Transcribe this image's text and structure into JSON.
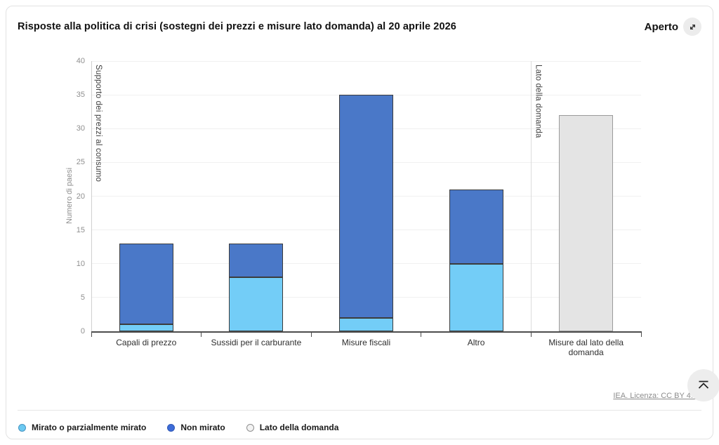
{
  "header": {
    "title": "Risposte alla politica di crisi (sostegni dei prezzi e misure lato domanda) al 20 aprile 2026",
    "open_label": "Aperto"
  },
  "chart_data": {
    "type": "bar",
    "stacked": true,
    "title": "Risposte alla politica di crisi (sostegni dei prezzi e misure lato domanda) al 20 aprile 2026",
    "categories": [
      "Capali di prezzo",
      "Sussidi per il carburante",
      "Misure fiscali",
      "Altro",
      "Misure dal lato della domanda"
    ],
    "series": [
      {
        "name": "Mirato o parzialmente mirato",
        "color": "#73cdf7",
        "border": "#3c3c3c",
        "values": [
          1,
          8,
          2,
          10,
          0
        ]
      },
      {
        "name": "Non mirato",
        "color": "#4a78c8",
        "border": "#3c3c3c",
        "values": [
          12,
          5,
          33,
          11,
          0
        ]
      },
      {
        "name": "Lato della domanda",
        "color": "#e4e4e4",
        "border": "#9b9b9b",
        "values": [
          0,
          0,
          0,
          0,
          32
        ]
      }
    ],
    "totals": [
      13,
      13,
      35,
      21,
      32
    ],
    "xlabel": "",
    "ylabel": "Numero di paesi",
    "ylim": [
      0,
      40
    ],
    "yticks": [
      0,
      5,
      10,
      15,
      20,
      25,
      30,
      35,
      40
    ],
    "grid": true,
    "legend_position": "bottom",
    "sections": [
      {
        "label": "Supporto dei prezzi al consumo",
        "from": 0,
        "to": 4
      },
      {
        "label": "Lato della domanda",
        "from": 4,
        "to": 5
      }
    ]
  },
  "legend": {
    "items": [
      {
        "label": "Mirato o parzialmente mirato",
        "color": "#6cc9f1",
        "border": "#4795c2"
      },
      {
        "label": "Non mirato",
        "color": "#3d6cd8",
        "border": "#2f57b5"
      },
      {
        "label": "Lato della domanda",
        "color": "#f3f3f3",
        "border": "#8f8f8f"
      }
    ]
  },
  "footer": {
    "license_label": "IEA. Licenza: CC BY 4.0"
  },
  "colors": {
    "axis": "#4d4d4d",
    "grid": "#f0f0f0",
    "y_axis_line": "#cfcfcf",
    "section_divider": "#dcdcdc"
  }
}
